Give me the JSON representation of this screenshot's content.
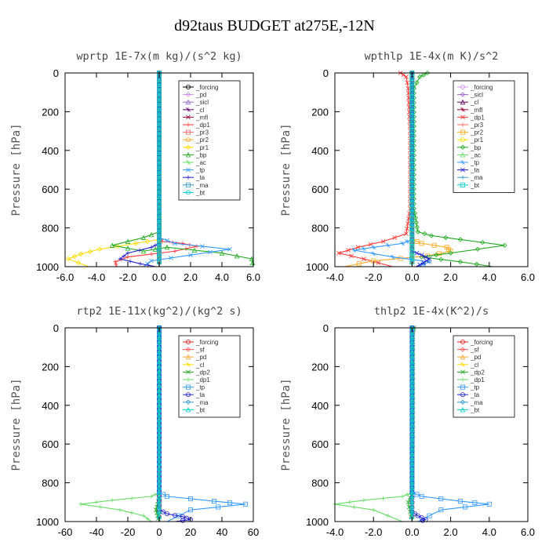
{
  "title": "d92taus  BUDGET at275E,-12N",
  "chart_data": [
    {
      "type": "line",
      "title": "wprtp  1E-7x(m kg)/(s^2 kg)",
      "ylabel": "Pressure [hPa]",
      "xlim": [
        -6,
        6
      ],
      "ylim": [
        1000,
        0
      ],
      "xticks": [
        -6,
        -4,
        -2,
        0,
        2,
        4,
        6
      ],
      "xtick_labels": [
        "-6.0",
        "-4.0",
        "-2.0",
        "0.0",
        "2.0",
        "4.0",
        "6.0"
      ],
      "yticks": [
        0,
        200,
        400,
        600,
        800,
        1000
      ],
      "legend": "inside-top-right",
      "grid": false,
      "series": [
        {
          "name": "_forcing",
          "color": "#000000",
          "x": [
            0,
            0,
            0,
            0,
            0,
            0,
            0,
            0,
            0,
            0
          ],
          "y": [
            0,
            100,
            200,
            300,
            400,
            500,
            600,
            700,
            800,
            1000
          ]
        },
        {
          "name": "_pd",
          "color": "#cc88ee",
          "x": [
            0,
            0
          ],
          "y": [
            0,
            1000
          ]
        },
        {
          "name": "_sicl",
          "color": "#9966cc",
          "x": [
            0,
            0
          ],
          "y": [
            0,
            1000
          ]
        },
        {
          "name": "_cl",
          "color": "#660066",
          "x": [
            0,
            0
          ],
          "y": [
            0,
            1000
          ]
        },
        {
          "name": "_mfl",
          "color": "#990033",
          "x": [
            0,
            0
          ],
          "y": [
            0,
            1000
          ]
        },
        {
          "name": "_dp1",
          "color": "#ff3333",
          "x": [
            0,
            0,
            0.2,
            1.5,
            2.4,
            1.0,
            -2.0,
            -2.8,
            -2.7
          ],
          "y": [
            0,
            850,
            870,
            880,
            895,
            920,
            950,
            975,
            1000
          ]
        },
        {
          "name": "_pr3",
          "color": "#ff6666",
          "x": [
            0,
            0
          ],
          "y": [
            0,
            1000
          ]
        },
        {
          "name": "_pr2",
          "color": "#ffaa22",
          "x": [
            0,
            0
          ],
          "y": [
            0,
            1000
          ]
        },
        {
          "name": "_pr1",
          "color": "#ffdd00",
          "x": [
            0,
            0,
            -1.5,
            -3.8,
            -5.0,
            -5.8,
            -4.5
          ],
          "y": [
            0,
            860,
            880,
            910,
            935,
            960,
            1000
          ]
        },
        {
          "name": "_bp",
          "color": "#22aa22",
          "x": [
            0,
            0,
            -1.0,
            -3.0,
            -1.0,
            0.5,
            4.0,
            5.9,
            6.0
          ],
          "y": [
            0,
            820,
            850,
            890,
            920,
            900,
            930,
            960,
            1000
          ]
        },
        {
          "name": "_ac",
          "color": "#66dd66",
          "x": [
            0,
            0
          ],
          "y": [
            0,
            1000
          ]
        },
        {
          "name": "_tp",
          "color": "#3399ff",
          "x": [
            0,
            0,
            1.0,
            4.5,
            2.0,
            -0.5,
            -1.0
          ],
          "y": [
            0,
            850,
            880,
            910,
            940,
            970,
            1000
          ]
        },
        {
          "name": "_ta",
          "color": "#2222cc",
          "x": [
            0,
            0,
            -0.5,
            -2.0,
            -2.5,
            -1.2,
            -0.2
          ],
          "y": [
            0,
            880,
            900,
            930,
            960,
            985,
            1000
          ]
        },
        {
          "name": "_ma",
          "color": "#3399cc",
          "x": [
            0,
            0
          ],
          "y": [
            0,
            1000
          ]
        },
        {
          "name": "_bt",
          "color": "#00cccc",
          "x": [
            0,
            0
          ],
          "y": [
            0,
            1000
          ]
        }
      ]
    },
    {
      "type": "line",
      "title": "wpthlp  1E-4x(m K)/s^2",
      "ylabel": "Pressure [hPa]",
      "xlim": [
        -4,
        6
      ],
      "ylim": [
        1000,
        0
      ],
      "xticks": [
        -4,
        -2,
        0,
        2,
        4,
        6
      ],
      "xtick_labels": [
        "-4.0",
        "-2.0",
        "0.0",
        "2.0",
        "4.0",
        "6.0"
      ],
      "yticks": [
        0,
        200,
        400,
        600,
        800,
        1000
      ],
      "legend": "inside-top-right",
      "grid": false,
      "series": [
        {
          "name": "_forcing",
          "color": "#cc99ee",
          "x": [
            0,
            0
          ],
          "y": [
            0,
            1000
          ]
        },
        {
          "name": "_sicl",
          "color": "#9966cc",
          "x": [
            0,
            0
          ],
          "y": [
            0,
            1000
          ]
        },
        {
          "name": "_cl",
          "color": "#660066",
          "x": [
            0,
            0
          ],
          "y": [
            0,
            1000
          ]
        },
        {
          "name": "_mfl",
          "color": "#990033",
          "x": [
            0,
            0
          ],
          "y": [
            0,
            1000
          ]
        },
        {
          "name": "_dp1",
          "color": "#ff3333",
          "x": [
            -0.6,
            -0.3,
            -0.2,
            -0.1,
            -0.1,
            -0.3,
            -1.5,
            -2.8,
            -3.8,
            -2.5,
            -1.0
          ],
          "y": [
            0,
            20,
            80,
            300,
            700,
            830,
            870,
            900,
            930,
            960,
            1000
          ]
        },
        {
          "name": "_pr3",
          "color": "#ff6666",
          "x": [
            0,
            0
          ],
          "y": [
            0,
            1000
          ]
        },
        {
          "name": "_pr2",
          "color": "#ffaa22",
          "x": [
            0,
            0,
            0.5,
            1.8,
            2.0,
            0.8,
            -2.0,
            -3.5
          ],
          "y": [
            0,
            860,
            880,
            900,
            920,
            945,
            970,
            1000
          ]
        },
        {
          "name": "_pr1",
          "color": "#ffdd00",
          "x": [
            0,
            0
          ],
          "y": [
            0,
            1000
          ]
        },
        {
          "name": "_bp",
          "color": "#22aa22",
          "x": [
            0.8,
            0.4,
            0.1,
            0.1,
            0.1,
            0.3,
            1.0,
            2.5,
            4.8,
            2.0,
            0.5,
            2.5,
            4.2
          ],
          "y": [
            0,
            20,
            80,
            300,
            700,
            820,
            840,
            860,
            890,
            930,
            950,
            975,
            1000
          ]
        },
        {
          "name": "_ac",
          "color": "#66dd66",
          "x": [
            0,
            0
          ],
          "y": [
            0,
            1000
          ]
        },
        {
          "name": "_tp",
          "color": "#3399ff",
          "x": [
            0,
            0,
            -0.5,
            -2.0,
            -3.0,
            -1.0,
            0.9,
            0.3
          ],
          "y": [
            0,
            860,
            880,
            900,
            915,
            950,
            975,
            1000
          ]
        },
        {
          "name": "_ta",
          "color": "#2222cc",
          "x": [
            0,
            0,
            0.5,
            0.9,
            0.6,
            0.2
          ],
          "y": [
            0,
            920,
            940,
            960,
            980,
            1000
          ]
        },
        {
          "name": "_ma",
          "color": "#3399cc",
          "x": [
            0,
            0
          ],
          "y": [
            0,
            1000
          ]
        },
        {
          "name": "_bt",
          "color": "#00cccc",
          "x": [
            0,
            0
          ],
          "y": [
            0,
            1000
          ]
        }
      ]
    },
    {
      "type": "line",
      "title": "rtp2  1E-11x(kg^2)/(kg^2 s)",
      "ylabel": "Pressure [hPa]",
      "xlim": [
        -60,
        60
      ],
      "ylim": [
        1000,
        0
      ],
      "xticks": [
        -60,
        -40,
        -20,
        0,
        20,
        40,
        60
      ],
      "xtick_labels": [
        "-60",
        "-40",
        "-20",
        "0",
        "20",
        "40",
        "60"
      ],
      "yticks": [
        0,
        200,
        400,
        600,
        800,
        1000
      ],
      "legend": "inside-top-right",
      "grid": false,
      "series": [
        {
          "name": "_forcing",
          "color": "#dd2222",
          "x": [
            0,
            0,
            0,
            0,
            0,
            0,
            0,
            0,
            0,
            0
          ],
          "y": [
            0,
            100,
            200,
            300,
            400,
            500,
            600,
            700,
            800,
            1000
          ]
        },
        {
          "name": "_sf",
          "color": "#ff5555",
          "x": [
            0,
            0
          ],
          "y": [
            0,
            1000
          ]
        },
        {
          "name": "_pd",
          "color": "#ffaa33",
          "x": [
            0,
            0
          ],
          "y": [
            0,
            1000
          ]
        },
        {
          "name": "_cl",
          "color": "#ffdd00",
          "x": [
            0,
            0
          ],
          "y": [
            0,
            1000
          ]
        },
        {
          "name": "_dp2",
          "color": "#22aa22",
          "x": [
            0,
            0,
            -1,
            -2,
            -1,
            0
          ],
          "y": [
            0,
            880,
            910,
            940,
            970,
            1000
          ]
        },
        {
          "name": "_dp1",
          "color": "#66dd66",
          "x": [
            0,
            0,
            -5,
            -30,
            -50,
            -25,
            -10,
            -5
          ],
          "y": [
            0,
            850,
            870,
            890,
            910,
            940,
            970,
            1000
          ]
        },
        {
          "name": "_tp",
          "color": "#3399ff",
          "x": [
            0,
            0,
            5,
            35,
            55,
            20,
            5
          ],
          "y": [
            0,
            850,
            870,
            895,
            910,
            940,
            1000
          ]
        },
        {
          "name": "_ta",
          "color": "#2222cc",
          "x": [
            0,
            0,
            5,
            15,
            20,
            10
          ],
          "y": [
            0,
            940,
            960,
            975,
            990,
            1000
          ]
        },
        {
          "name": "_ma",
          "color": "#3399cc",
          "x": [
            0,
            0
          ],
          "y": [
            0,
            1000
          ]
        },
        {
          "name": "_bt",
          "color": "#00cccc",
          "x": [
            0,
            0
          ],
          "y": [
            0,
            1000
          ]
        }
      ]
    },
    {
      "type": "line",
      "title": "thlp2  1E-4x(K^2)/s",
      "ylabel": "Pressure [hPa]",
      "xlim": [
        -4,
        6
      ],
      "ylim": [
        1000,
        0
      ],
      "xticks": [
        -4,
        -2,
        0,
        2,
        4,
        6
      ],
      "xtick_labels": [
        "-4.0",
        "-2.0",
        "0.0",
        "2.0",
        "4.0",
        "6.0"
      ],
      "yticks": [
        0,
        200,
        400,
        600,
        800,
        1000
      ],
      "legend": "inside-top-right",
      "grid": false,
      "series": [
        {
          "name": "_forcing",
          "color": "#dd2222",
          "x": [
            0,
            0,
            0,
            0,
            0,
            0,
            0,
            0,
            0,
            0
          ],
          "y": [
            0,
            100,
            200,
            300,
            400,
            500,
            600,
            700,
            800,
            1000
          ]
        },
        {
          "name": "_sf",
          "color": "#ff5555",
          "x": [
            0,
            0
          ],
          "y": [
            0,
            1000
          ]
        },
        {
          "name": "_pd",
          "color": "#ffaa33",
          "x": [
            0,
            0
          ],
          "y": [
            0,
            1000
          ]
        },
        {
          "name": "_cl",
          "color": "#ffdd00",
          "x": [
            0,
            0
          ],
          "y": [
            0,
            1000
          ]
        },
        {
          "name": "_dp2",
          "color": "#22aa22",
          "x": [
            0.1,
            0.05,
            0.05,
            0.05,
            0,
            -0.2,
            -0.1,
            0
          ],
          "y": [
            0,
            20,
            100,
            500,
            850,
            900,
            950,
            1000
          ]
        },
        {
          "name": "_dp1",
          "color": "#66dd66",
          "x": [
            0,
            0,
            -0.5,
            -2.5,
            -4.0,
            -2.0,
            -0.5
          ],
          "y": [
            0,
            850,
            870,
            890,
            910,
            940,
            1000
          ]
        },
        {
          "name": "_tp",
          "color": "#3399ff",
          "x": [
            0,
            0,
            0.5,
            2.5,
            4.0,
            1.5,
            0.3
          ],
          "y": [
            0,
            850,
            870,
            895,
            910,
            940,
            1000
          ]
        },
        {
          "name": "_ta",
          "color": "#2222cc",
          "x": [
            0,
            0,
            0.3,
            0.7,
            0.4
          ],
          "y": [
            0,
            950,
            970,
            990,
            1000
          ]
        },
        {
          "name": "_ma",
          "color": "#3399cc",
          "x": [
            0,
            0
          ],
          "y": [
            0,
            1000
          ]
        },
        {
          "name": "_bt",
          "color": "#00cccc",
          "x": [
            0,
            0
          ],
          "y": [
            0,
            1000
          ]
        }
      ]
    }
  ]
}
